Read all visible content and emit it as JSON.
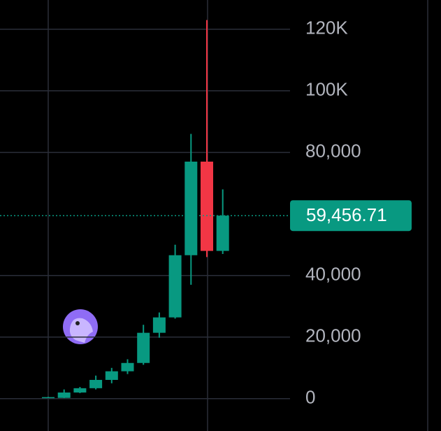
{
  "chart_data": {
    "type": "candlestick",
    "categories": [
      null,
      null,
      null,
      null,
      null,
      null,
      null,
      null,
      null,
      null,
      null,
      null
    ],
    "open": [
      300,
      250,
      2000,
      3400,
      6100,
      8900,
      11600,
      21400,
      26400,
      46600,
      77000,
      48000
    ],
    "high": [
      600,
      3000,
      3800,
      7500,
      10000,
      12800,
      24000,
      28000,
      50000,
      86000,
      123000,
      68000
    ],
    "low": [
      200,
      200,
      1800,
      3000,
      5000,
      8000,
      11000,
      19800,
      26000,
      37000,
      46000,
      47000
    ],
    "close": [
      500,
      2000,
      3400,
      6100,
      8900,
      11600,
      21400,
      26400,
      46600,
      77000,
      48000,
      59456.71
    ],
    "up_color": "#089981",
    "down_color": "#f23645",
    "ylim": [
      -10500,
      129500
    ],
    "yticks": [
      0,
      {
        "value": 20000,
        "label": "20,000"
      },
      {
        "value": 40000,
        "label": "40,000"
      },
      {
        "value": 80000,
        "label": "80,000"
      },
      {
        "value": 100000,
        "label": "100K"
      },
      {
        "value": 120000,
        "label": "120K"
      }
    ],
    "grid": true,
    "last_price": {
      "value": 59456.71,
      "label": "59,456.71"
    }
  }
}
